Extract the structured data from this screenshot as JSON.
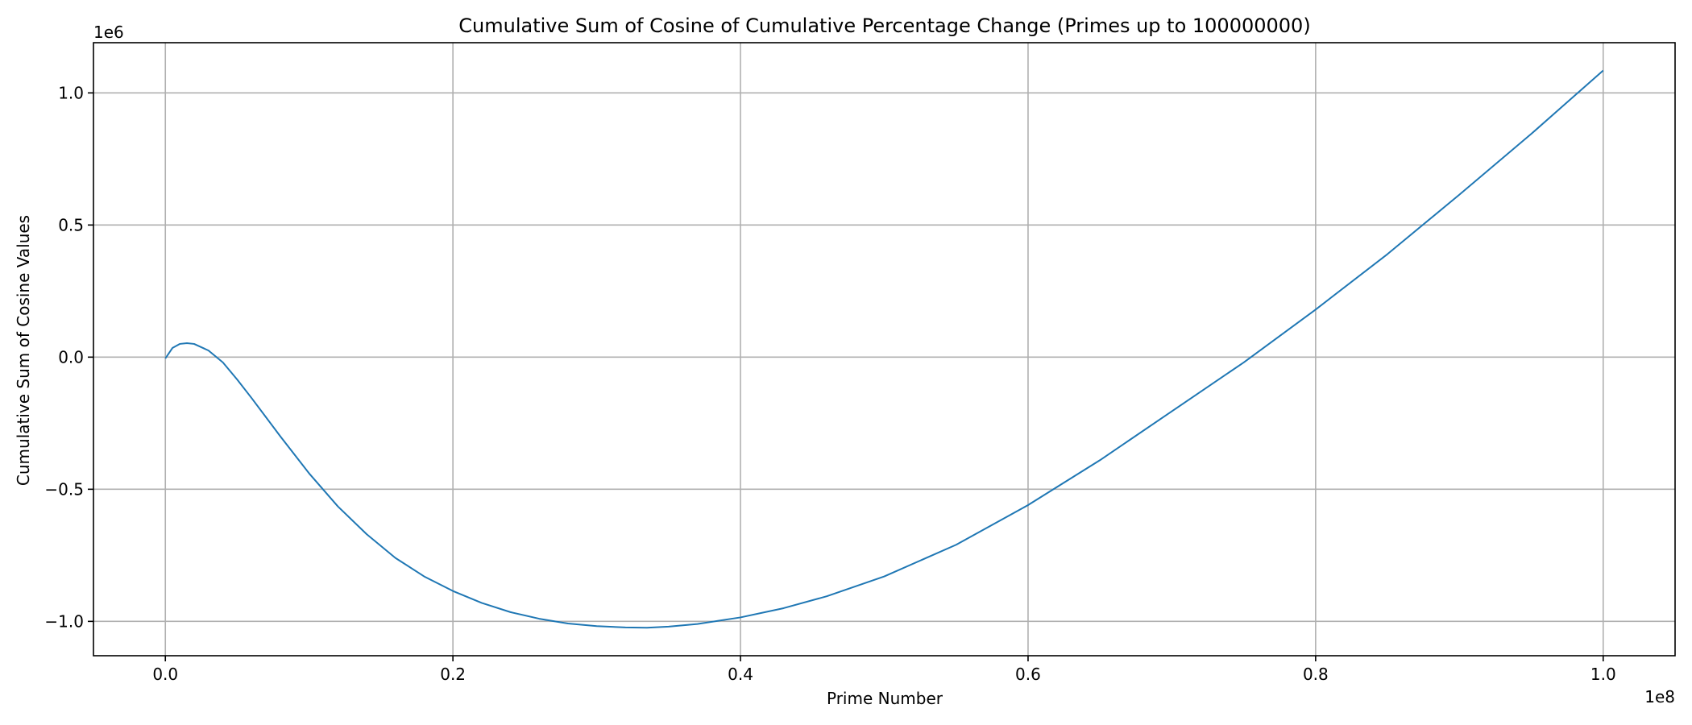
{
  "chart_data": {
    "type": "line",
    "title": "Cumulative Sum of Cosine of Cumulative Percentage Change (Primes up to 100000000)",
    "xlabel": "Prime Number",
    "ylabel": "Cumulative Sum of Cosine Values",
    "x_offset_text": "1e8",
    "y_offset_text": "1e6",
    "xlim": [
      -0.05,
      1.05
    ],
    "ylim": [
      -1.13,
      1.19
    ],
    "x_ticks": [
      0.0,
      0.2,
      0.4,
      0.6,
      0.8,
      1.0
    ],
    "x_tick_labels": [
      "0.0",
      "0.2",
      "0.4",
      "0.6",
      "0.8",
      "1.0"
    ],
    "y_ticks": [
      -1.0,
      -0.5,
      0.0,
      0.5,
      1.0
    ],
    "y_tick_labels": [
      "−1.0",
      "−0.5",
      "0.0",
      "0.5",
      "1.0"
    ],
    "grid": true,
    "line_color": "#1f77b4",
    "series": [
      {
        "x": [
          0.0,
          0.005,
          0.01,
          0.015,
          0.02,
          0.03,
          0.04,
          0.05,
          0.06,
          0.08,
          0.1,
          0.12,
          0.14,
          0.16,
          0.18,
          0.2,
          0.22,
          0.24,
          0.26,
          0.28,
          0.3,
          0.32,
          0.335,
          0.35,
          0.37,
          0.4,
          0.43,
          0.46,
          0.5,
          0.55,
          0.6,
          0.65,
          0.7,
          0.75,
          0.8,
          0.85,
          0.9,
          0.95,
          1.0
        ],
        "y": [
          -0.005,
          0.035,
          0.05,
          0.053,
          0.05,
          0.025,
          -0.02,
          -0.085,
          -0.155,
          -0.3,
          -0.44,
          -0.565,
          -0.67,
          -0.76,
          -0.83,
          -0.885,
          -0.93,
          -0.965,
          -0.99,
          -1.008,
          -1.018,
          -1.023,
          -1.024,
          -1.02,
          -1.01,
          -0.985,
          -0.95,
          -0.905,
          -0.83,
          -0.71,
          -0.56,
          -0.39,
          -0.205,
          -0.02,
          0.18,
          0.39,
          0.615,
          0.845,
          1.085
        ]
      }
    ]
  }
}
